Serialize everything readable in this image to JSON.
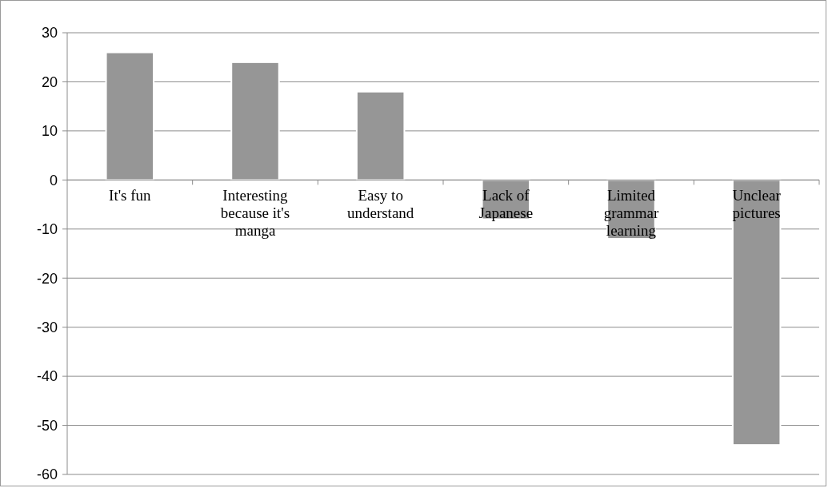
{
  "chart_data": {
    "type": "bar",
    "categories": [
      "It's fun",
      "Interesting because it's manga",
      "Easy to understand",
      "Lack of Japanese",
      "Limited grammar learning",
      "Unclear pictures"
    ],
    "values": [
      26,
      24,
      18,
      -8,
      -12,
      -54
    ],
    "color": "#969696",
    "ylim": [
      -60,
      30
    ],
    "yticks": [
      -60,
      -50,
      -40,
      -30,
      -20,
      -10,
      0,
      10,
      20,
      30
    ],
    "grid": "y"
  }
}
